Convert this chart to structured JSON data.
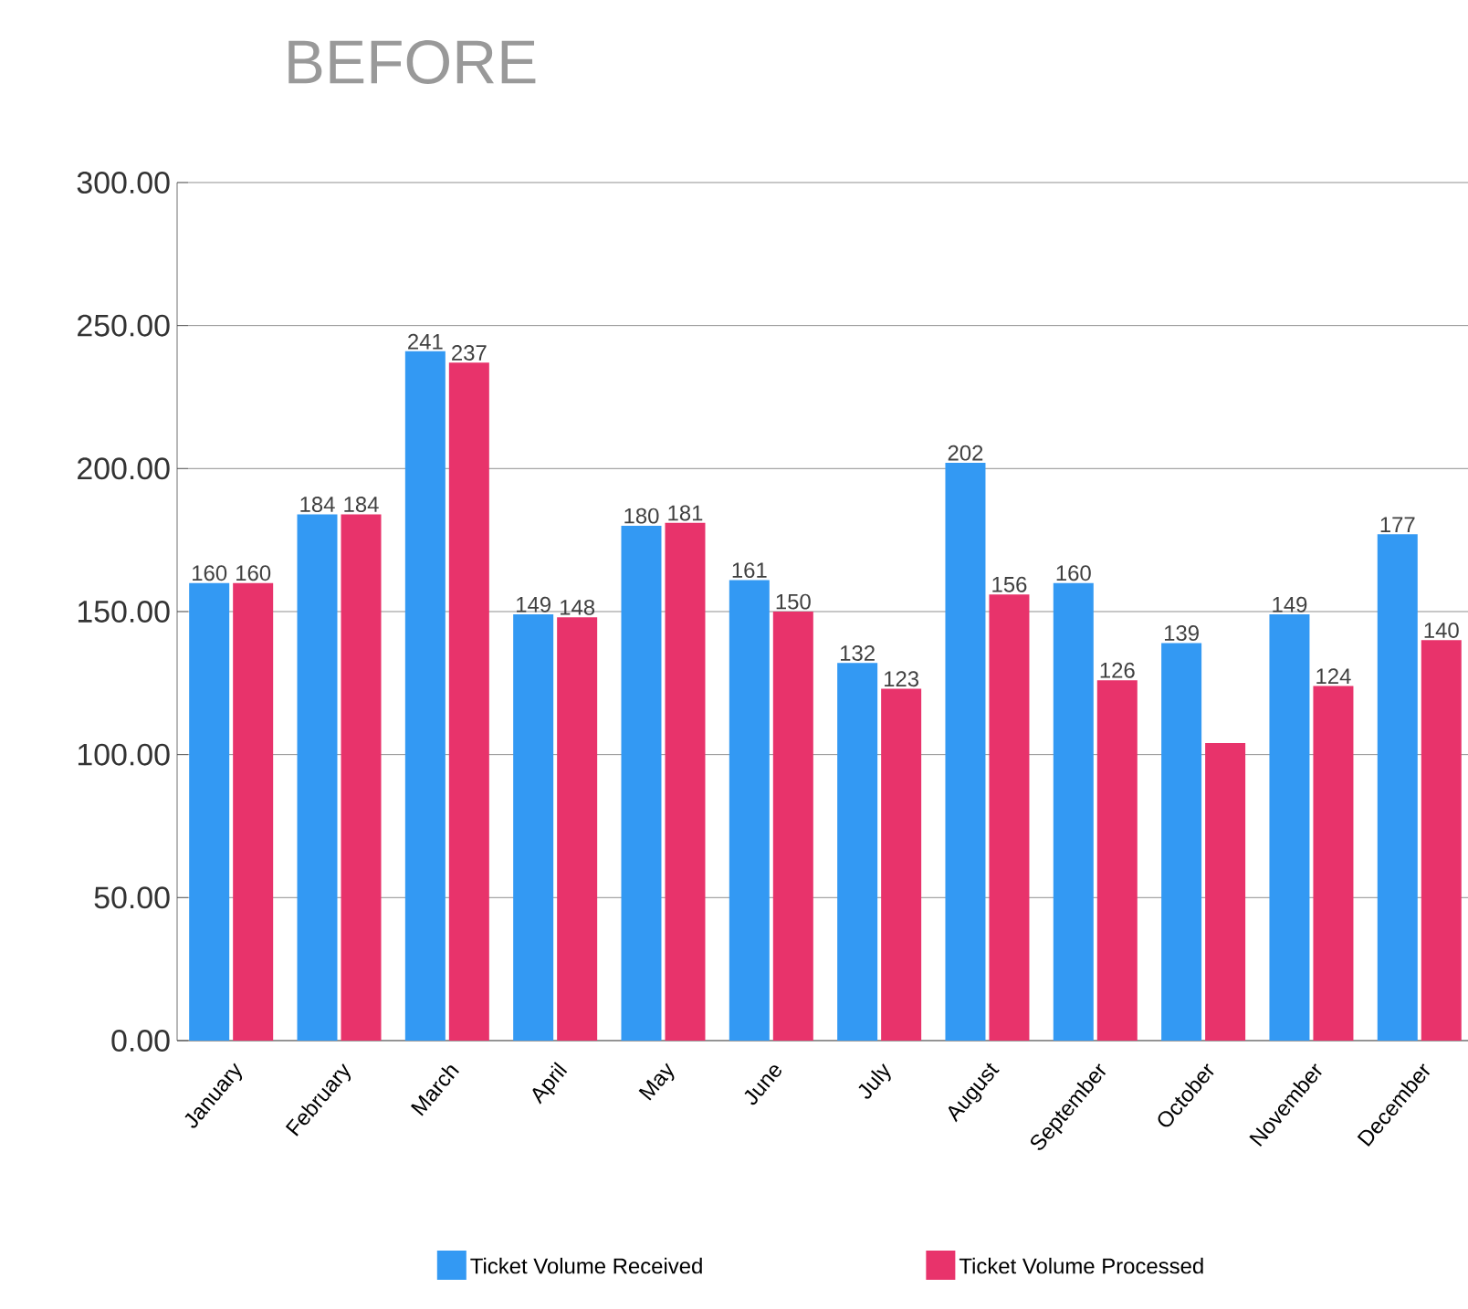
{
  "chart_data": {
    "type": "bar",
    "title": "BEFORE",
    "categories": [
      "January",
      "February",
      "March",
      "April",
      "May",
      "June",
      "July",
      "August",
      "September",
      "October",
      "November",
      "December"
    ],
    "series": [
      {
        "name": "Ticket Volume Received",
        "color": "#3399f3",
        "values": [
          160,
          184,
          241,
          149,
          180,
          161,
          132,
          202,
          160,
          139,
          149,
          177
        ],
        "value_labels": [
          "160",
          "184",
          "241",
          "149",
          "180",
          "161",
          "132",
          "202",
          "160",
          "139",
          "149",
          "177"
        ]
      },
      {
        "name": "Ticket Volume Processed",
        "color": "#e8336b",
        "values": [
          160,
          184,
          237,
          148,
          181,
          150,
          123,
          156,
          126,
          104,
          124,
          140
        ],
        "value_labels": [
          "160",
          "184",
          "237",
          "148",
          "181",
          "150",
          "123",
          "156",
          "126",
          null,
          "124",
          "140"
        ]
      }
    ],
    "ylim": [
      0,
      300
    ],
    "yticks": [
      {
        "value": 0,
        "label": "0.00"
      },
      {
        "value": 50,
        "label": "50.00"
      },
      {
        "value": 100,
        "label": "100.00"
      },
      {
        "value": 150,
        "label": "150.00"
      },
      {
        "value": 200,
        "label": "200.00"
      },
      {
        "value": 250,
        "label": "250.00"
      },
      {
        "value": 300,
        "label": "300.00"
      }
    ],
    "grid": "y",
    "legend": "bottom"
  }
}
